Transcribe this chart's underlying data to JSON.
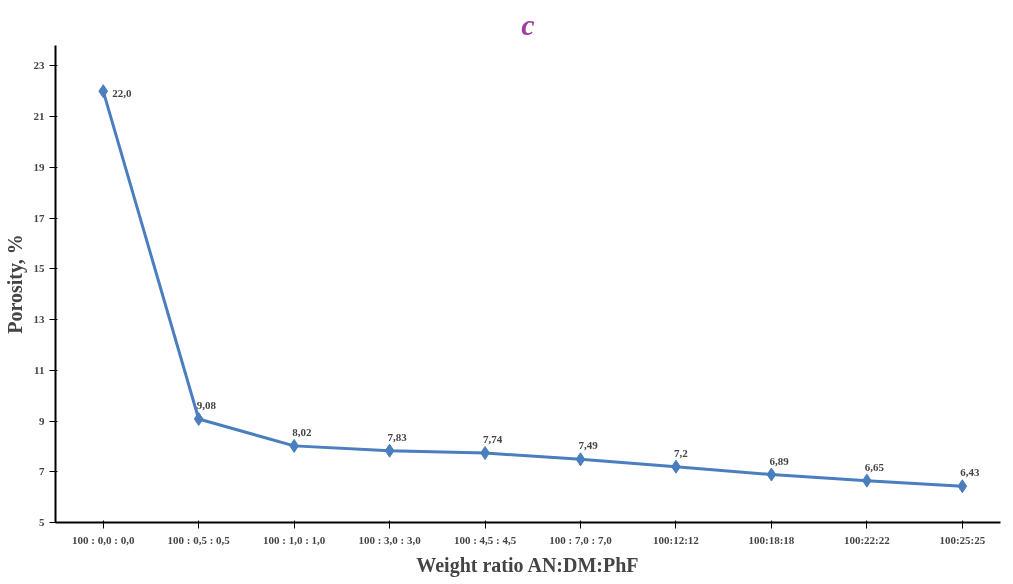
{
  "chart_data": {
    "type": "line",
    "title": "c",
    "xlabel": "Weight ratio AN:DM:PhF",
    "ylabel": "Porosity, %",
    "categories": [
      "100 : 0,0 : 0,0",
      "100 : 0,5 : 0,5",
      "100 : 1,0 : 1,0",
      "100 : 3,0 : 3,0",
      "100 : 4,5 : 4,5",
      "100 : 7,0 : 7,0",
      "100:12:12",
      "100:18:18",
      "100:22:22",
      "100:25:25"
    ],
    "series": [
      {
        "color": "#4a7ebf",
        "values": [
          22.0,
          9.08,
          8.02,
          7.83,
          7.74,
          7.49,
          7.2,
          6.89,
          6.65,
          6.43
        ],
        "value_labels": [
          "22,0",
          "9,08",
          "8,02",
          "7,83",
          "7,74",
          "7,49",
          "7,2",
          "6,89",
          "6,65",
          "6,43"
        ]
      }
    ],
    "ylim": [
      5,
      23.8
    ],
    "yticks": [
      5,
      7,
      9,
      11,
      13,
      15,
      17,
      19,
      21,
      23
    ],
    "grid": false,
    "marker": "diamond",
    "line_style": "solid"
  }
}
